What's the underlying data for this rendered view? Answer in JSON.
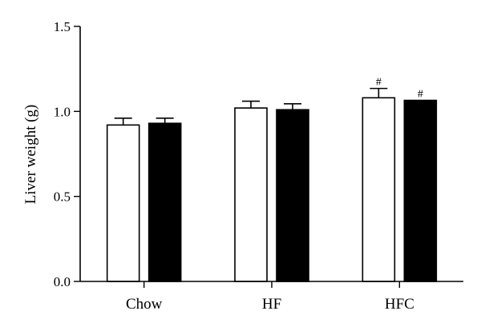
{
  "chart_data": {
    "type": "bar",
    "title": "",
    "xlabel": "",
    "ylabel": "Liver weight (g)",
    "ylim": [
      0,
      1.5
    ],
    "yticks": [
      0.0,
      0.5,
      1.0,
      1.5
    ],
    "ytick_labels": [
      "0.0",
      "0.5",
      "1.0",
      "1.5"
    ],
    "grid": false,
    "categories": [
      "Chow",
      "HF",
      "HFC"
    ],
    "series": [
      {
        "fill": "#ffffff",
        "values": [
          0.92,
          1.02,
          1.08
        ],
        "errors": [
          0.04,
          0.04,
          0.055
        ],
        "annotations": [
          "",
          "",
          "#"
        ]
      },
      {
        "fill": "#000000",
        "values": [
          0.93,
          1.01,
          1.065
        ],
        "errors": [
          0.03,
          0.035,
          0.0
        ],
        "annotations": [
          "",
          "",
          "#"
        ]
      }
    ]
  }
}
